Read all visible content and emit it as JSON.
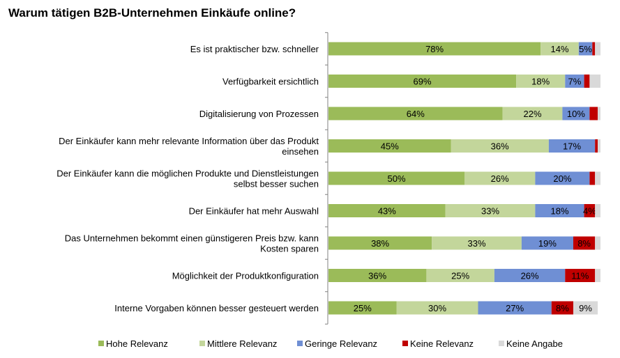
{
  "chart_data": {
    "type": "bar",
    "orientation": "horizontal",
    "stacked": true,
    "title": "Warum tätigen B2B-Unternehmen Einkäufe online?",
    "xlim": [
      0,
      100
    ],
    "grid": false,
    "legend_position": "bottom",
    "categories": [
      [
        "Es ist praktischer bzw. schneller"
      ],
      [
        "Verfügbarkeit ersichtlich"
      ],
      [
        "Digitalisierung von Prozessen"
      ],
      [
        "Der Einkäufer kann mehr relevante Information über das Produkt",
        "einsehen"
      ],
      [
        "Der Einkäufer kann die möglichen Produkte und Dienstleistungen",
        "selbst besser suchen"
      ],
      [
        "Der Einkäufer hat mehr Auswahl"
      ],
      [
        "Das Unternehmen bekommt einen günstigeren Preis bzw. kann",
        "Kosten sparen"
      ],
      [
        "Möglichkeit der Produktkonfiguration"
      ],
      [
        "Interne Vorgaben können besser gesteuert werden"
      ]
    ],
    "series": [
      {
        "name": "Hohe Relevanz",
        "color": "#9BBB59",
        "values": [
          78,
          69,
          64,
          45,
          50,
          43,
          38,
          36,
          25
        ],
        "labels": [
          "78%",
          "69%",
          "64%",
          "45%",
          "50%",
          "43%",
          "38%",
          "36%",
          "25%"
        ]
      },
      {
        "name": "Mittlere Relevanz",
        "color": "#C3D69B",
        "values": [
          14,
          18,
          22,
          36,
          26,
          33,
          33,
          25,
          30
        ],
        "labels": [
          "14%",
          "18%",
          "22%",
          "36%",
          "26%",
          "33%",
          "33%",
          "25%",
          "30%"
        ]
      },
      {
        "name": "Geringe Relevanz",
        "color": "#6F8FD4",
        "values": [
          5,
          7,
          10,
          17,
          20,
          18,
          19,
          26,
          27
        ],
        "labels": [
          "5%",
          "7%",
          "10%",
          "17%",
          "20%",
          "18%",
          "19%",
          "26%",
          "27%"
        ]
      },
      {
        "name": "Keine Relevanz",
        "color": "#C00000",
        "values": [
          1,
          2,
          3,
          1,
          2,
          4,
          8,
          11,
          8
        ],
        "labels": [
          "",
          "",
          "",
          "",
          "",
          "4%",
          "8%",
          "11%",
          "8%"
        ]
      },
      {
        "name": "Keine Angabe",
        "color": "#D9D9D9",
        "values": [
          2,
          4,
          1,
          1,
          2,
          2,
          2,
          2,
          9
        ],
        "labels": [
          "",
          "",
          "",
          "",
          "",
          "",
          "",
          "",
          "9%"
        ]
      }
    ]
  }
}
